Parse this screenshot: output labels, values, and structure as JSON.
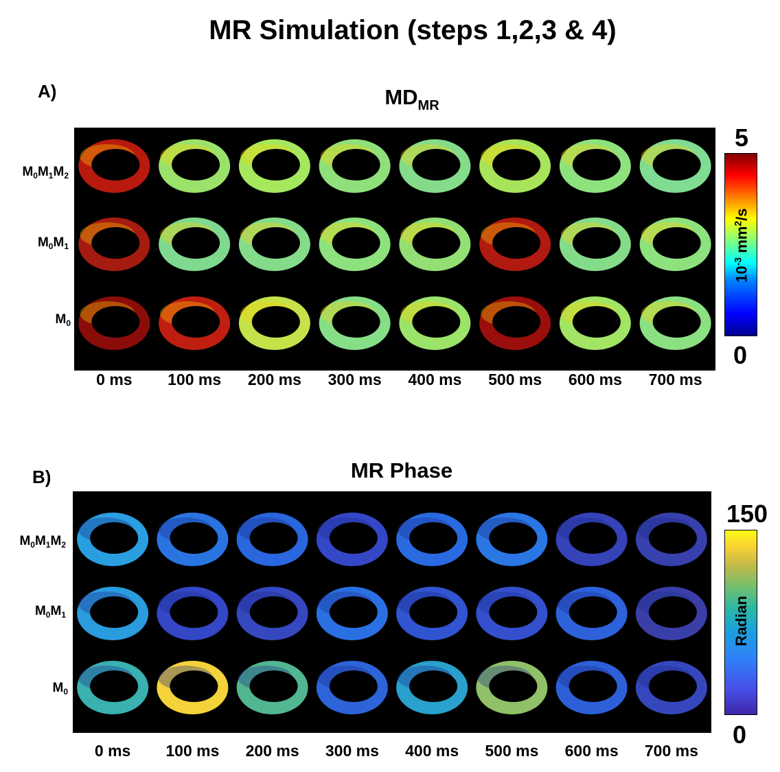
{
  "title": "MR Simulation (steps 1,2,3 & 4)",
  "panel_a": {
    "label": "A)",
    "title_main": "MD",
    "title_sub": "MR",
    "rows": [
      {
        "l1": "M",
        "s1": "0",
        "l2": "M",
        "s2": "1",
        "l3": "M",
        "s3": "2"
      },
      {
        "l1": "M",
        "s1": "0",
        "l2": "M",
        "s2": "1",
        "l3": "",
        "s3": ""
      },
      {
        "l1": "M",
        "s1": "0",
        "l2": "",
        "s2": "",
        "l3": "",
        "s3": ""
      }
    ],
    "time_labels": [
      "0 ms",
      "100 ms",
      "200 ms",
      "300 ms",
      "400 ms",
      "500 ms",
      "600 ms",
      "700 ms"
    ],
    "colorbar": {
      "max": "5",
      "min": "0",
      "unit_pre": "10",
      "unit_exp": "-3",
      "unit_mid": " mm",
      "unit_exp2": "2",
      "unit_post": "/s",
      "colormap": "jet"
    }
  },
  "panel_b": {
    "label": "B)",
    "title": "MR Phase",
    "rows": [
      {
        "l1": "M",
        "s1": "0",
        "l2": "M",
        "s2": "1",
        "l3": "M",
        "s3": "2"
      },
      {
        "l1": "M",
        "s1": "0",
        "l2": "M",
        "s2": "1",
        "l3": "",
        "s3": ""
      },
      {
        "l1": "M",
        "s1": "0",
        "l2": "",
        "s2": "",
        "l3": "",
        "s3": ""
      }
    ],
    "time_labels": [
      "0 ms",
      "100 ms",
      "200 ms",
      "300 ms",
      "400 ms",
      "500 ms",
      "600 ms",
      "700 ms"
    ],
    "colorbar": {
      "max": "150",
      "min": "0",
      "label": "Radian",
      "colormap": "parula"
    }
  },
  "md_colors": [
    [
      "#b81a0e",
      "#9be26a",
      "#a5e85e",
      "#8fe07a",
      "#84dc8a",
      "#a8e45a",
      "#8ee27e",
      "#7fdc92"
    ],
    [
      "#a51b10",
      "#7fd98e",
      "#84dc8a",
      "#8ee27e",
      "#93df74",
      "#b01a10",
      "#84dc8a",
      "#8ee27e"
    ],
    [
      "#8a0d0a",
      "#c01e10",
      "#c5e24a",
      "#86de86",
      "#9ce36a",
      "#9a0f0b",
      "#a2e464",
      "#8be081"
    ]
  ],
  "phase_colors": [
    [
      "#2a9fe0",
      "#2a74e2",
      "#2a66dd",
      "#3447c6",
      "#2a6ae0",
      "#2a77e3",
      "#3542b8",
      "#3740ac"
    ],
    [
      "#2a9bdd",
      "#3447c6",
      "#3548c0",
      "#2a70e2",
      "#3154d0",
      "#3450cc",
      "#2d62da",
      "#3a3fa8"
    ],
    [
      "#3ab0b0",
      "#f4d23a",
      "#52b690",
      "#2d64da",
      "#2aa0cc",
      "#90c068",
      "#2d60d8",
      "#3647be"
    ]
  ]
}
